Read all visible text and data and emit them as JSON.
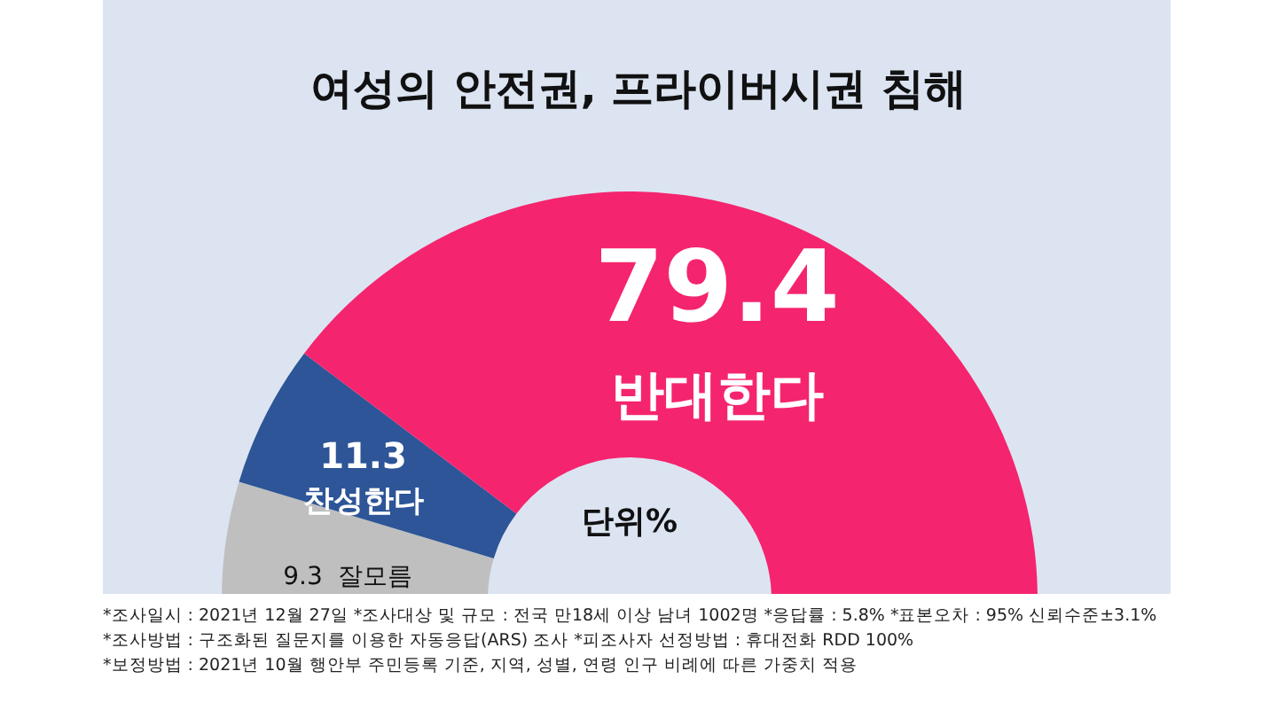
{
  "chart_data": {
    "type": "donut",
    "title": "여성의 안전권, 프라이버시권 침해",
    "categories": [
      "잘모름",
      "찬성한다",
      "반대한다"
    ],
    "values": [
      9.3,
      11.3,
      79.4
    ],
    "colors": [
      "#bfbfbf",
      "#2d5597",
      "#f5246e"
    ],
    "data_labels": true,
    "annotations": [
      "단위%",
      "*조사일시 : 2021년 12월 27일  *조사대상 및 규모 : 전국 만18세 이상 남녀 1002명 *응답률 : 5.8%  *표본오차 : 95% 신뢰수준±3.1%",
      "*조사방법 : 구조화된 질문지를 이용한 자동응답(ARS) 조사 *피조사자 선정방법 : 휴대전화 RDD 100%",
      "*보정방법 : 2021년 10월 행안부 주민등록 기준, 지역, 성별, 연령 인구 비례에 따른 가중치 적용"
    ]
  }
}
